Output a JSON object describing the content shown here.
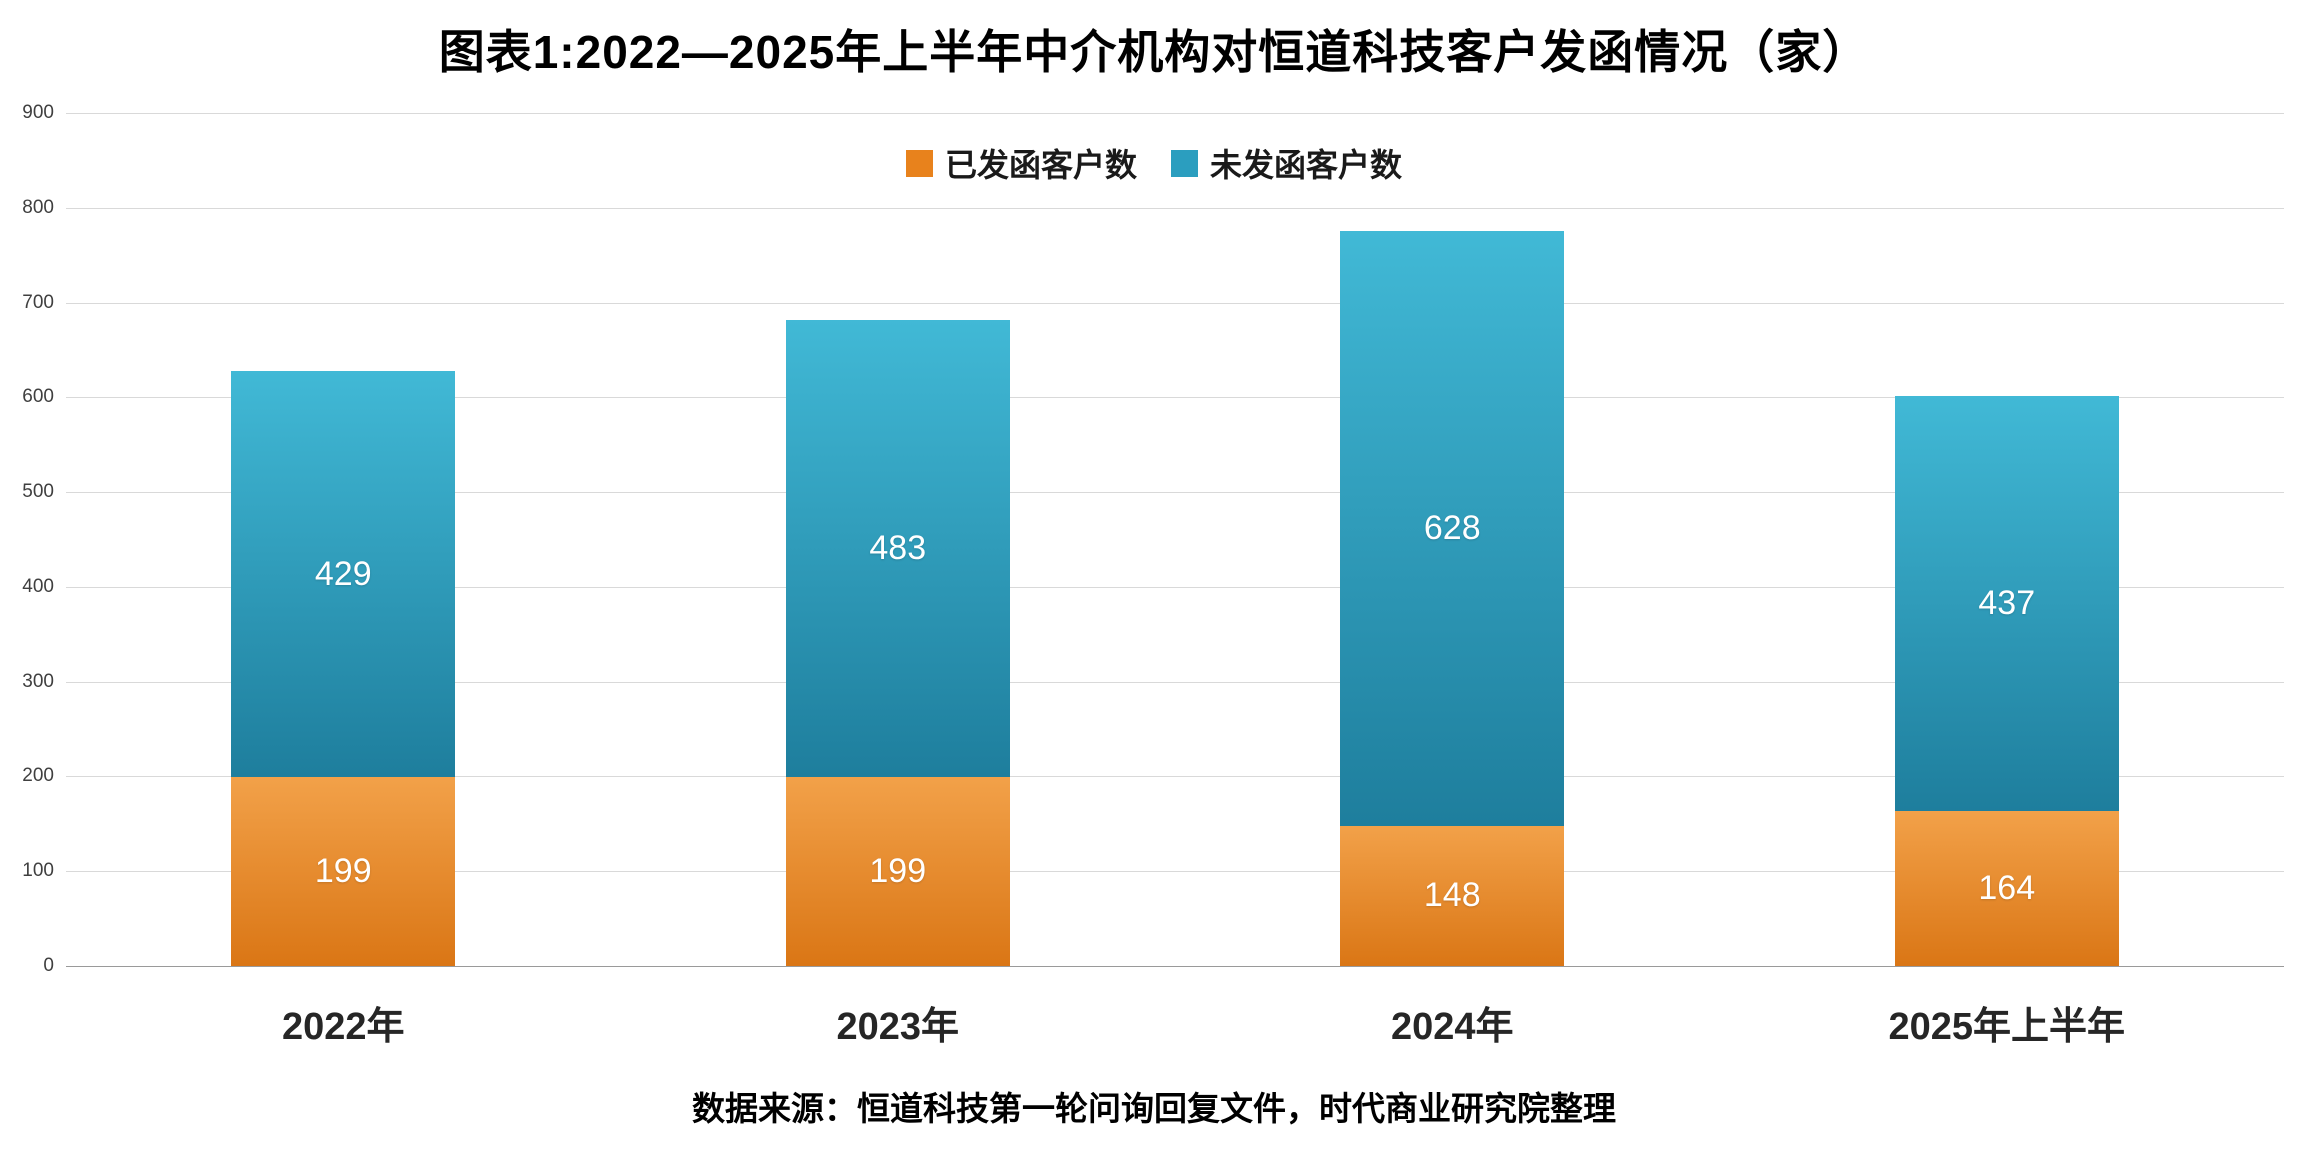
{
  "chart_data": {
    "type": "bar",
    "stacked": true,
    "title": "图表1:2022—2025年上半年中介机构对恒道科技客户发函情况（家）",
    "categories": [
      "2022年",
      "2023年",
      "2024年",
      "2025年上半年"
    ],
    "series": [
      {
        "name": "已发函客户数",
        "values": [
          199,
          199,
          148,
          164
        ],
        "color_top": "#F2A149",
        "color_bottom": "#DA7615",
        "legend_color": "#E8821C"
      },
      {
        "name": "未发函客户数",
        "values": [
          429,
          483,
          628,
          437
        ],
        "color_top": "#41B9D6",
        "color_bottom": "#1E7E9D",
        "legend_color": "#2B9EBF"
      }
    ],
    "totals": [
      628,
      682,
      776,
      601
    ],
    "ylim": [
      0,
      900
    ],
    "ytick_step": 100,
    "grid": true,
    "legend_position": "top",
    "bar_width_pct": 10.1,
    "source_note": "数据来源：恒道科技第一轮问询回复文件，时代商业研究院整理"
  }
}
